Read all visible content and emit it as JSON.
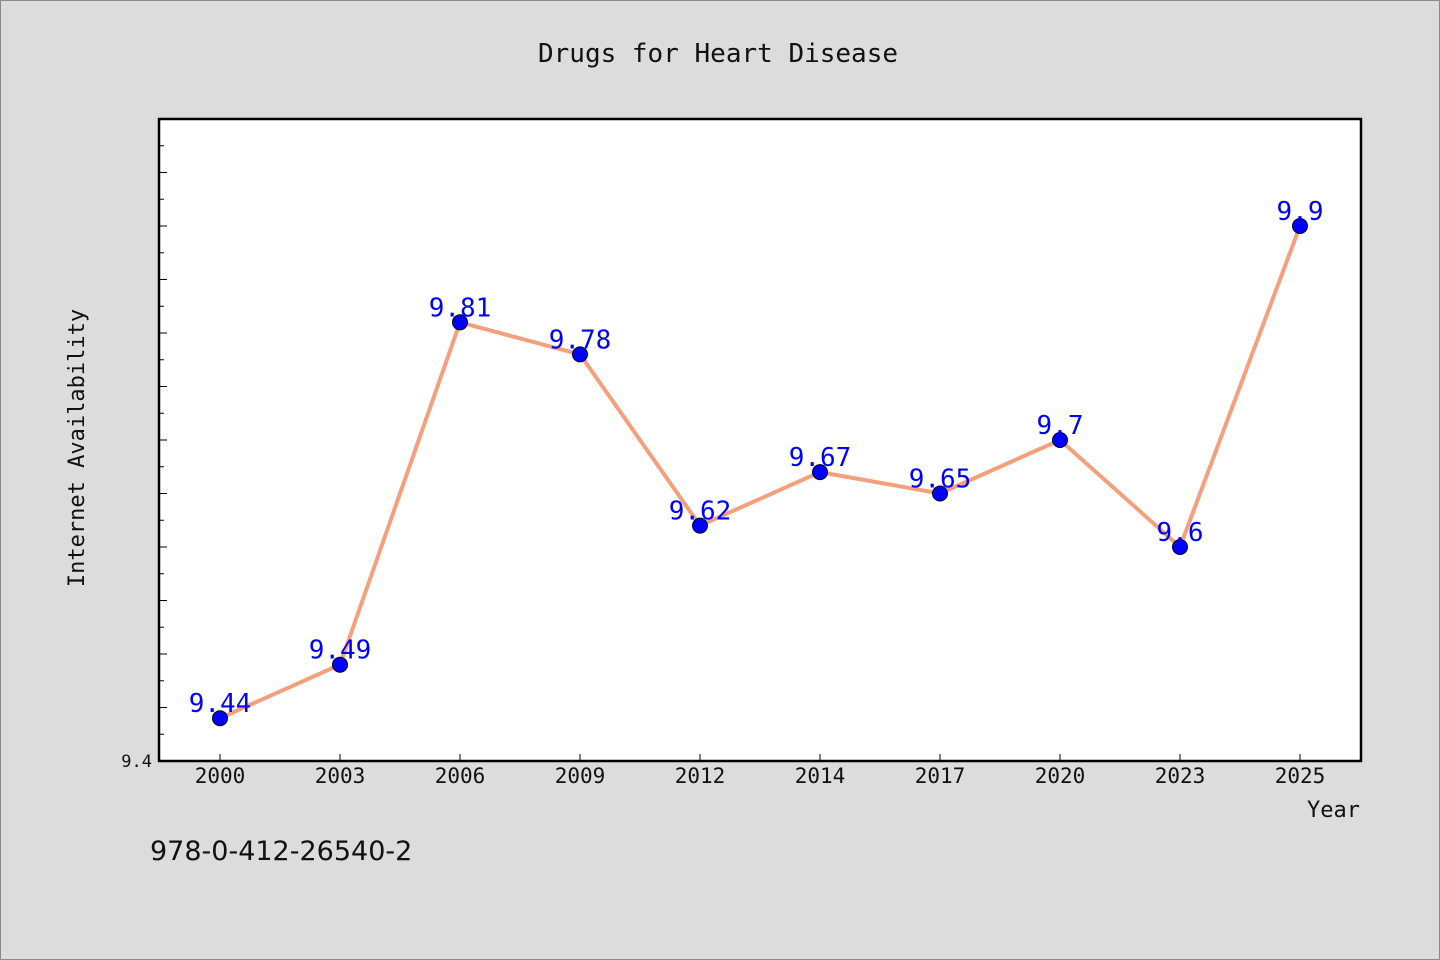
{
  "chart_data": {
    "type": "line",
    "title": "Drugs for Heart Disease",
    "xlabel": "Year",
    "ylabel": "Internet Availability",
    "categories": [
      "2000",
      "2003",
      "2006",
      "2009",
      "2012",
      "2014",
      "2017",
      "2020",
      "2023",
      "2025"
    ],
    "series": [
      {
        "values": [
          9.44,
          9.49,
          9.81,
          9.78,
          9.62,
          9.67,
          9.65,
          9.7,
          9.6,
          9.9
        ],
        "data_labels": [
          "9.44",
          "9.49",
          "9.81",
          "9.78",
          "9.62",
          "9.67",
          "9.65",
          "9.7",
          "9.6",
          "9.9"
        ]
      }
    ],
    "y_tick_labels": [
      "9.4"
    ],
    "ylim": [
      9.4,
      10.0
    ],
    "grid": false,
    "line_color": "#f4a07c",
    "marker_color": "#0000ff",
    "label_color": "#0000ff",
    "plot_background": "#ffffff",
    "page_background": "#dcdcdc"
  },
  "footer": {
    "code": "978-0-412-26540-2"
  }
}
